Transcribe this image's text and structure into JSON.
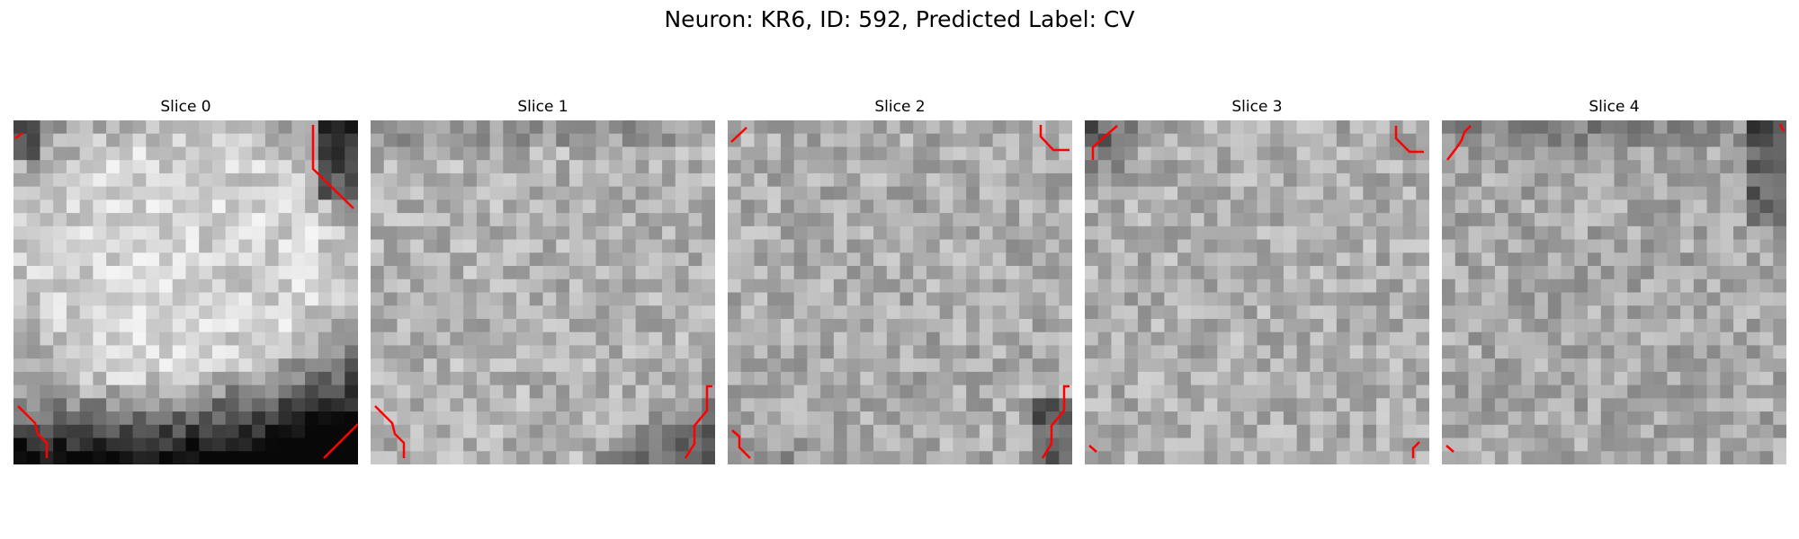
{
  "figure": {
    "title": "Neuron: KR6, ID: 592, Predicted Label: CV",
    "colormap": "gray",
    "contour_color": "#ff0000",
    "panels": [
      {
        "title": "Slice 0",
        "pattern": "bright-blob-dark-bottom"
      },
      {
        "title": "Slice 1",
        "pattern": "mid-gray-dark-bottom-right"
      },
      {
        "title": "Slice 2",
        "pattern": "mid-gray-noise"
      },
      {
        "title": "Slice 3",
        "pattern": "mid-gray-noise-dark-top-left"
      },
      {
        "title": "Slice 4",
        "pattern": "mid-gray-noise-dark-top"
      }
    ]
  }
}
